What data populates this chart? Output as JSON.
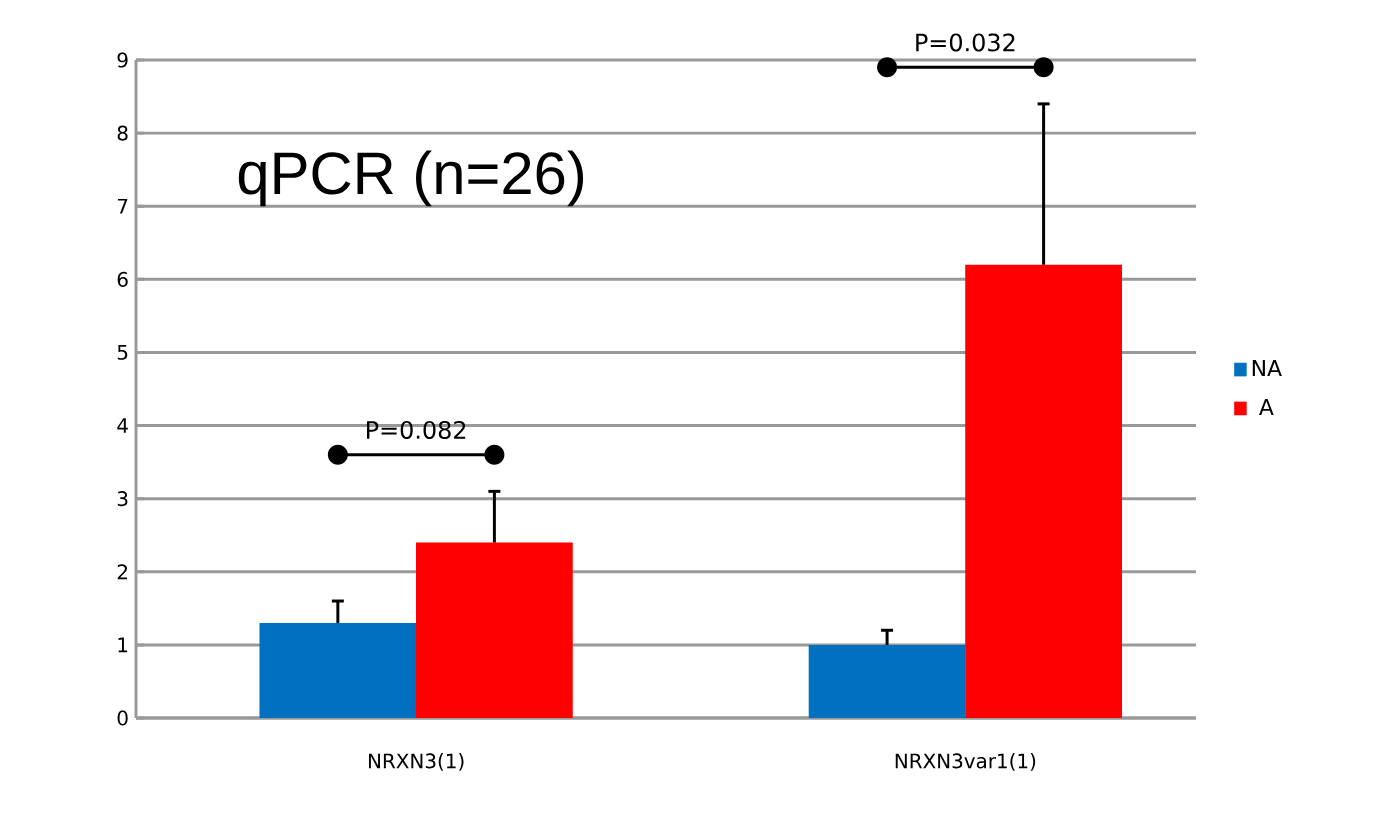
{
  "chart_data": {
    "type": "bar",
    "categories": [
      "NRXN3(1)",
      "NRXN3var1(1)"
    ],
    "series": [
      {
        "name": "NA",
        "color": "#0070c0",
        "values": [
          1.3,
          1.0
        ],
        "errors": [
          [
            1.3,
            1.6
          ],
          [
            1.0,
            1.2
          ]
        ]
      },
      {
        "name": "A",
        "color": "#ff0000",
        "values": [
          2.4,
          6.2
        ],
        "errors": [
          [
            2.4,
            3.1
          ],
          [
            6.2,
            8.4
          ]
        ]
      }
    ],
    "ylim": [
      0,
      9
    ],
    "yticks": [
      0,
      1,
      2,
      3,
      4,
      5,
      6,
      7,
      8,
      9
    ],
    "grid": "y",
    "legend": "right",
    "annotations": [
      "qPCR (n=26)",
      "P=0.082",
      "P=0.032"
    ]
  }
}
